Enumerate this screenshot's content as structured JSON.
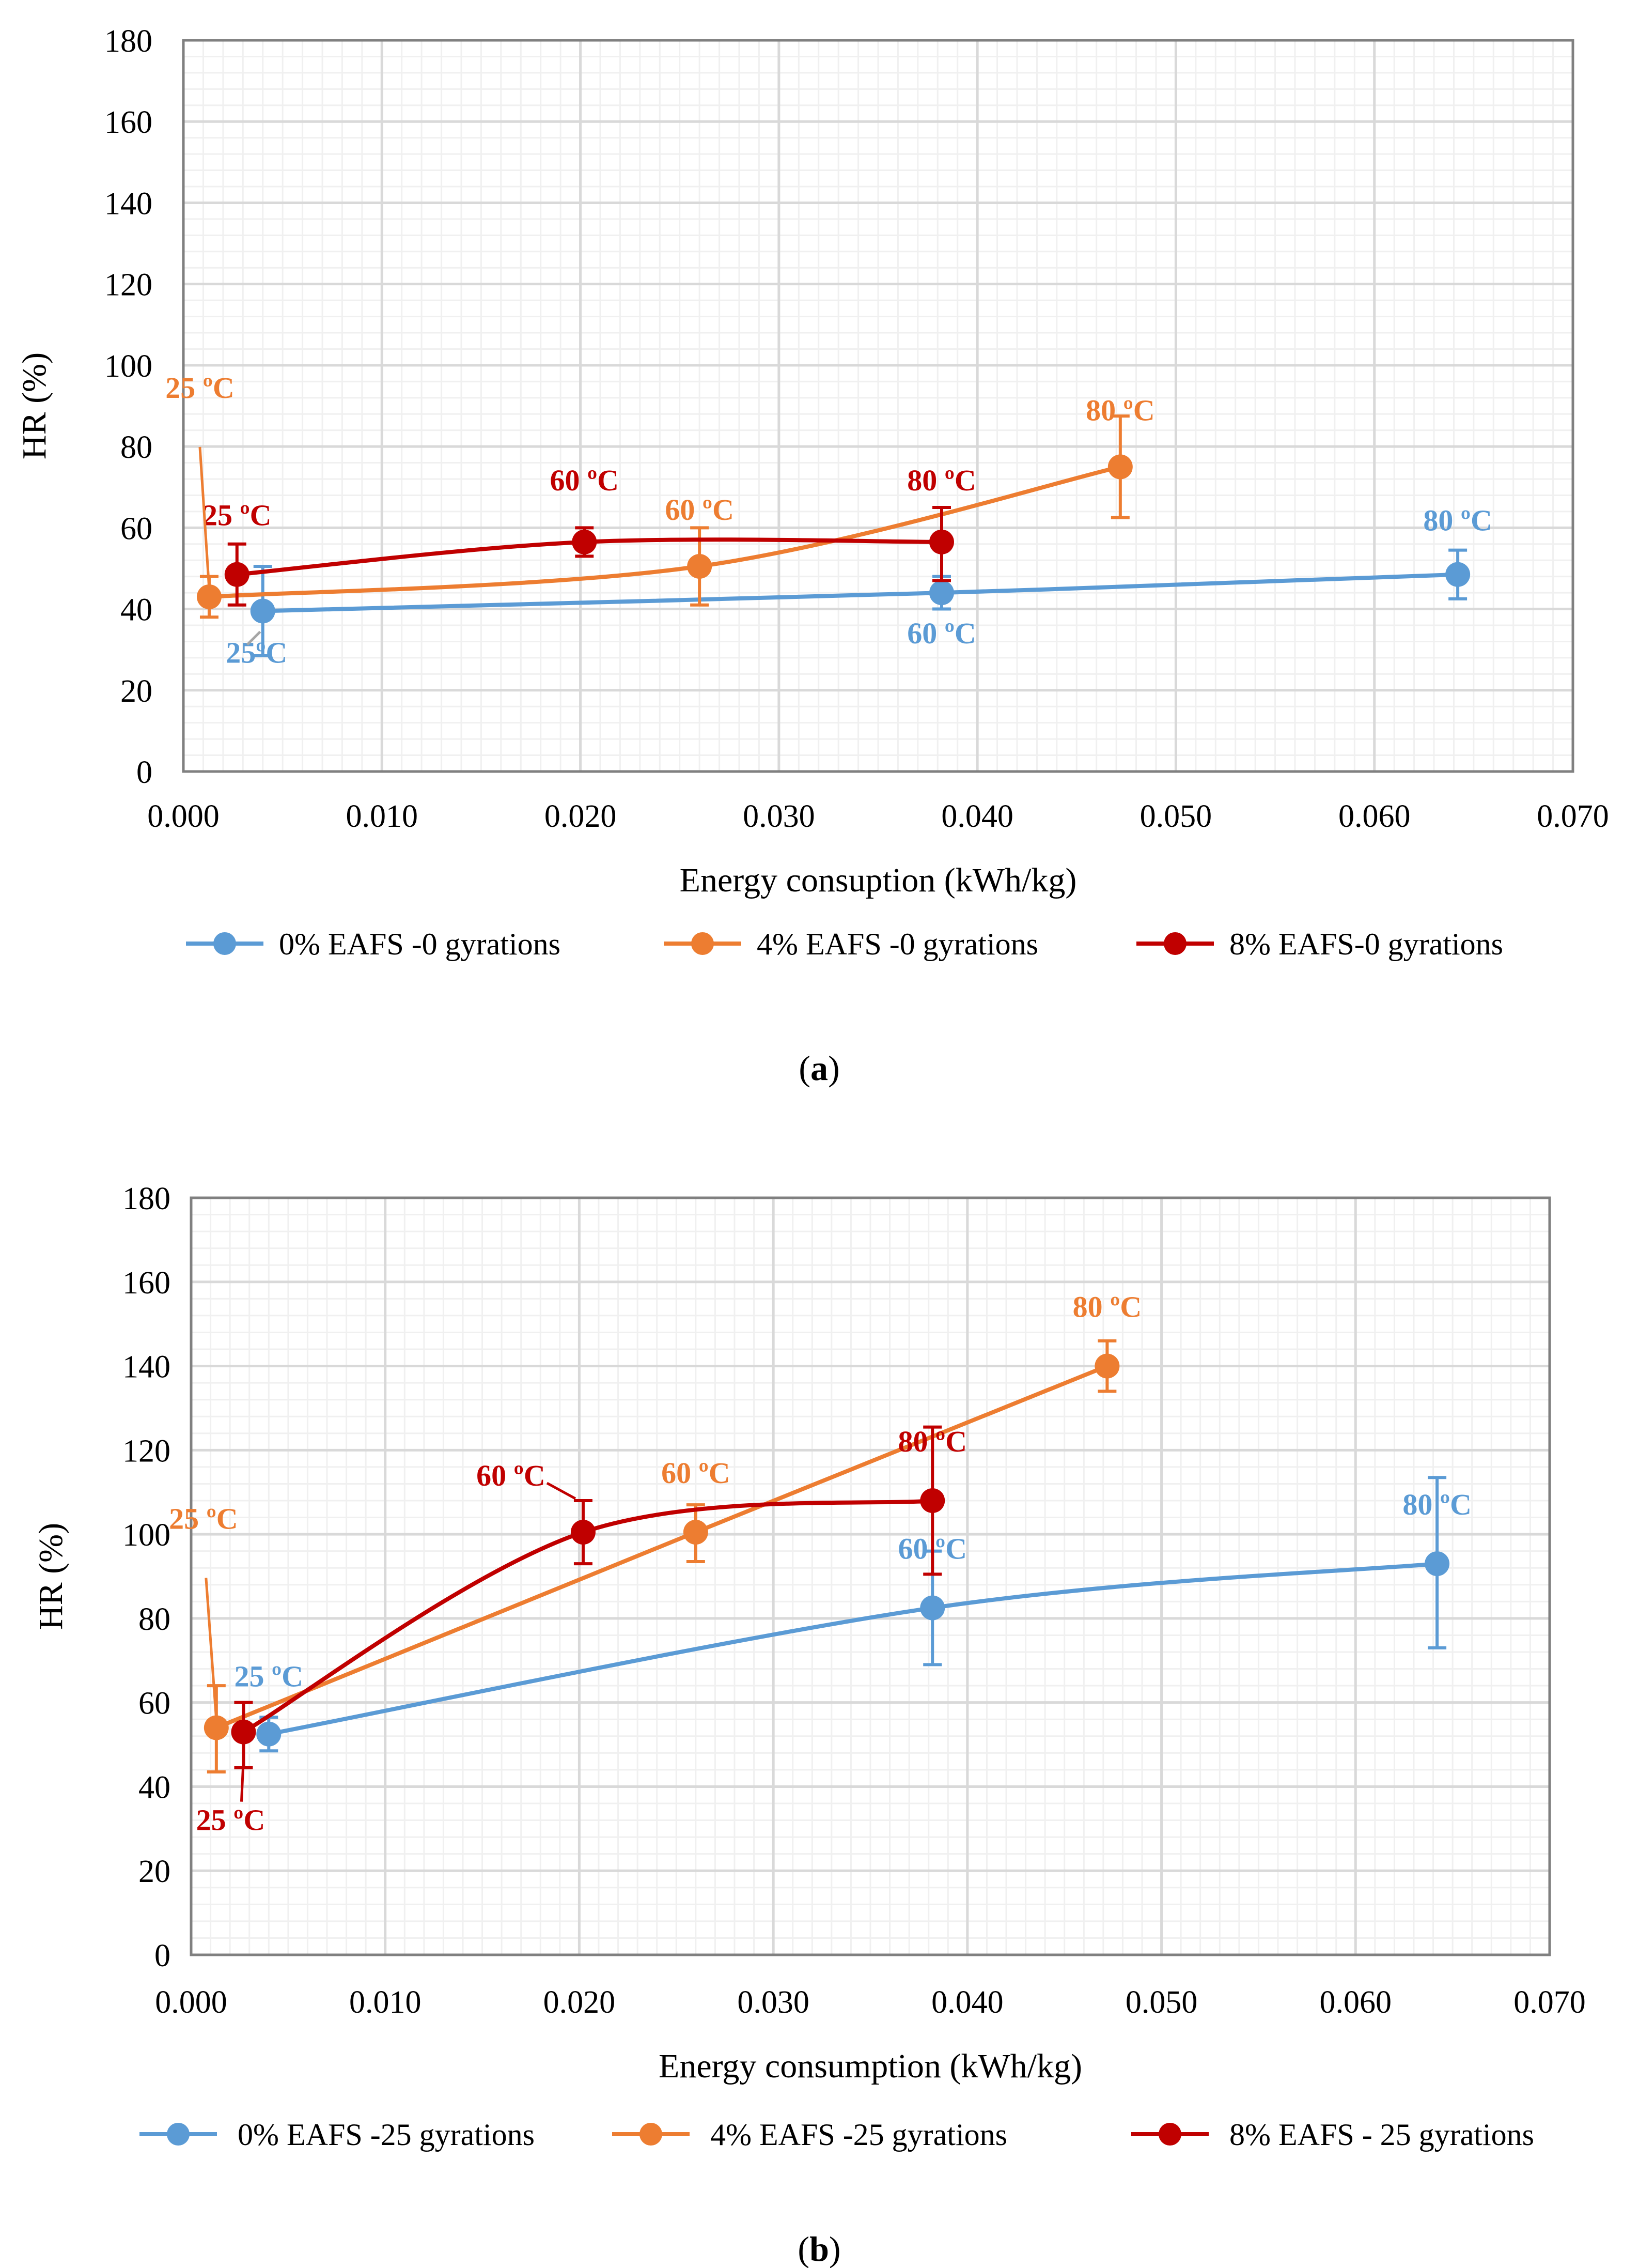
{
  "colors": {
    "blue": "#5B9BD5",
    "orange": "#ED7D31",
    "red": "#C00000",
    "grid_major": "#D9D9D9",
    "grid_minor": "#F0F0F0",
    "axis": "#808080",
    "text": "#000000"
  },
  "chart_data": [
    {
      "type": "line",
      "panel_label": "a",
      "title": "",
      "xlabel": "Energy consuption (kWh/kg)",
      "ylabel": "HR (%)",
      "xlim": [
        0,
        0.07
      ],
      "ylim": [
        0,
        180
      ],
      "x_ticks": [
        "0.000",
        "0.010",
        "0.020",
        "0.030",
        "0.040",
        "0.050",
        "0.060",
        "0.070"
      ],
      "y_ticks": [
        "0",
        "20",
        "40",
        "60",
        "80",
        "100",
        "120",
        "140",
        "160",
        "180"
      ],
      "grid": true,
      "legend_position": "bottom",
      "series": [
        {
          "name": "0% EAFS -0 gyrations",
          "color_key": "blue",
          "points": [
            {
              "x": 0.004,
              "y": 39.5,
              "err_low": 28.5,
              "err_high": 50.5,
              "label": "25ºC"
            },
            {
              "x": 0.0382,
              "y": 44.0,
              "err_low": 40.0,
              "err_high": 48.0,
              "label": "60 ºC"
            },
            {
              "x": 0.0642,
              "y": 48.5,
              "err_low": 42.5,
              "err_high": 54.5,
              "label": "80 ºC"
            }
          ]
        },
        {
          "name": "4% EAFS -0 gyrations",
          "color_key": "orange",
          "points": [
            {
              "x": 0.0013,
              "y": 43.0,
              "err_low": 38.0,
              "err_high": 48.0,
              "label": "25 ºC"
            },
            {
              "x": 0.026,
              "y": 50.5,
              "err_low": 41.0,
              "err_high": 60.0,
              "label": "60 ºC"
            },
            {
              "x": 0.0472,
              "y": 75.0,
              "err_low": 62.5,
              "err_high": 87.5,
              "label": "80 ºC"
            }
          ]
        },
        {
          "name": "8% EAFS-0 gyrations",
          "color_key": "red",
          "points": [
            {
              "x": 0.0027,
              "y": 48.5,
              "err_low": 41.0,
              "err_high": 56.0,
              "label": "25 ºC"
            },
            {
              "x": 0.0202,
              "y": 56.5,
              "err_low": 53.0,
              "err_high": 60.0,
              "label": "60 ºC"
            },
            {
              "x": 0.0382,
              "y": 56.5,
              "err_low": 47.0,
              "err_high": 65.0,
              "label": "80 ºC"
            }
          ]
        }
      ]
    },
    {
      "type": "line",
      "panel_label": "b",
      "title": "",
      "xlabel": "Energy consumption (kWh/kg)",
      "ylabel": "HR (%)",
      "xlim": [
        0,
        0.07
      ],
      "ylim": [
        0,
        180
      ],
      "x_ticks": [
        "0.000",
        "0.010",
        "0.020",
        "0.030",
        "0.040",
        "0.050",
        "0.060",
        "0.070"
      ],
      "y_ticks": [
        "0",
        "20",
        "40",
        "60",
        "80",
        "100",
        "120",
        "140",
        "160",
        "180"
      ],
      "grid": true,
      "legend_position": "bottom",
      "series": [
        {
          "name": "0% EAFS -25 gyrations",
          "color_key": "blue",
          "points": [
            {
              "x": 0.004,
              "y": 52.5,
              "err_low": 48.5,
              "err_high": 56.5,
              "label": "25 ºC"
            },
            {
              "x": 0.0382,
              "y": 82.5,
              "err_low": 69.0,
              "err_high": 96.0,
              "label": "60 ºC"
            },
            {
              "x": 0.0642,
              "y": 93.0,
              "err_low": 73.0,
              "err_high": 113.5,
              "label": "80 ºC"
            }
          ]
        },
        {
          "name": "4% EAFS -25 gyrations",
          "color_key": "orange",
          "points": [
            {
              "x": 0.0013,
              "y": 54.0,
              "err_low": 43.5,
              "err_high": 64.0,
              "label": "25 ºC"
            },
            {
              "x": 0.026,
              "y": 100.5,
              "err_low": 93.5,
              "err_high": 107.0,
              "label": "60 ºC"
            },
            {
              "x": 0.0472,
              "y": 140.0,
              "err_low": 134.0,
              "err_high": 146.0,
              "label": "80 ºC"
            }
          ]
        },
        {
          "name": "8% EAFS - 25 gyrations",
          "color_key": "red",
          "points": [
            {
              "x": 0.0027,
              "y": 53.0,
              "err_low": 44.5,
              "err_high": 60.0,
              "label": "25 ºC"
            },
            {
              "x": 0.0202,
              "y": 100.5,
              "err_low": 93.0,
              "err_high": 108.0,
              "label": "60 ºC"
            },
            {
              "x": 0.0382,
              "y": 108.0,
              "err_low": 90.5,
              "err_high": 125.5,
              "label": "80 ºC"
            }
          ]
        }
      ]
    }
  ]
}
